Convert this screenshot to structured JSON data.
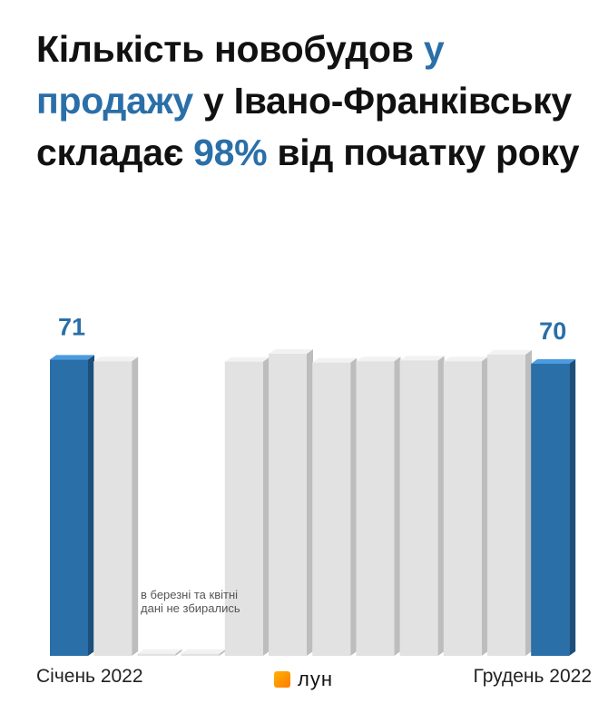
{
  "title": {
    "part1": "Кількість новобудов ",
    "hl1": "у продажу",
    "part2": " у Івано-Франківську складає ",
    "hl2": "98%",
    "part3": " від початку року"
  },
  "chart_data": {
    "type": "bar",
    "categories": [
      "Січень 2022",
      "",
      "",
      "",
      "",
      "",
      "",
      "",
      "",
      "",
      "",
      "Грудень 2022"
    ],
    "values": [
      71,
      70.6,
      null,
      null,
      70.5,
      72.4,
      70.3,
      70.6,
      70.8,
      70.6,
      72.2,
      70
    ],
    "highlight": [
      0,
      11
    ],
    "data_labels": {
      "0": "71",
      "11": "70"
    },
    "note": "в березні та квітні дані не збирались",
    "xlabel_left": "Січень 2022",
    "xlabel_right": "Грудень 2022",
    "colors": {
      "highlight": "#2a6fa8",
      "normal": "#e2e2e2",
      "accent_text": "#2a6fa8"
    }
  },
  "logo": {
    "name": "logo-icon",
    "text": "лун"
  }
}
